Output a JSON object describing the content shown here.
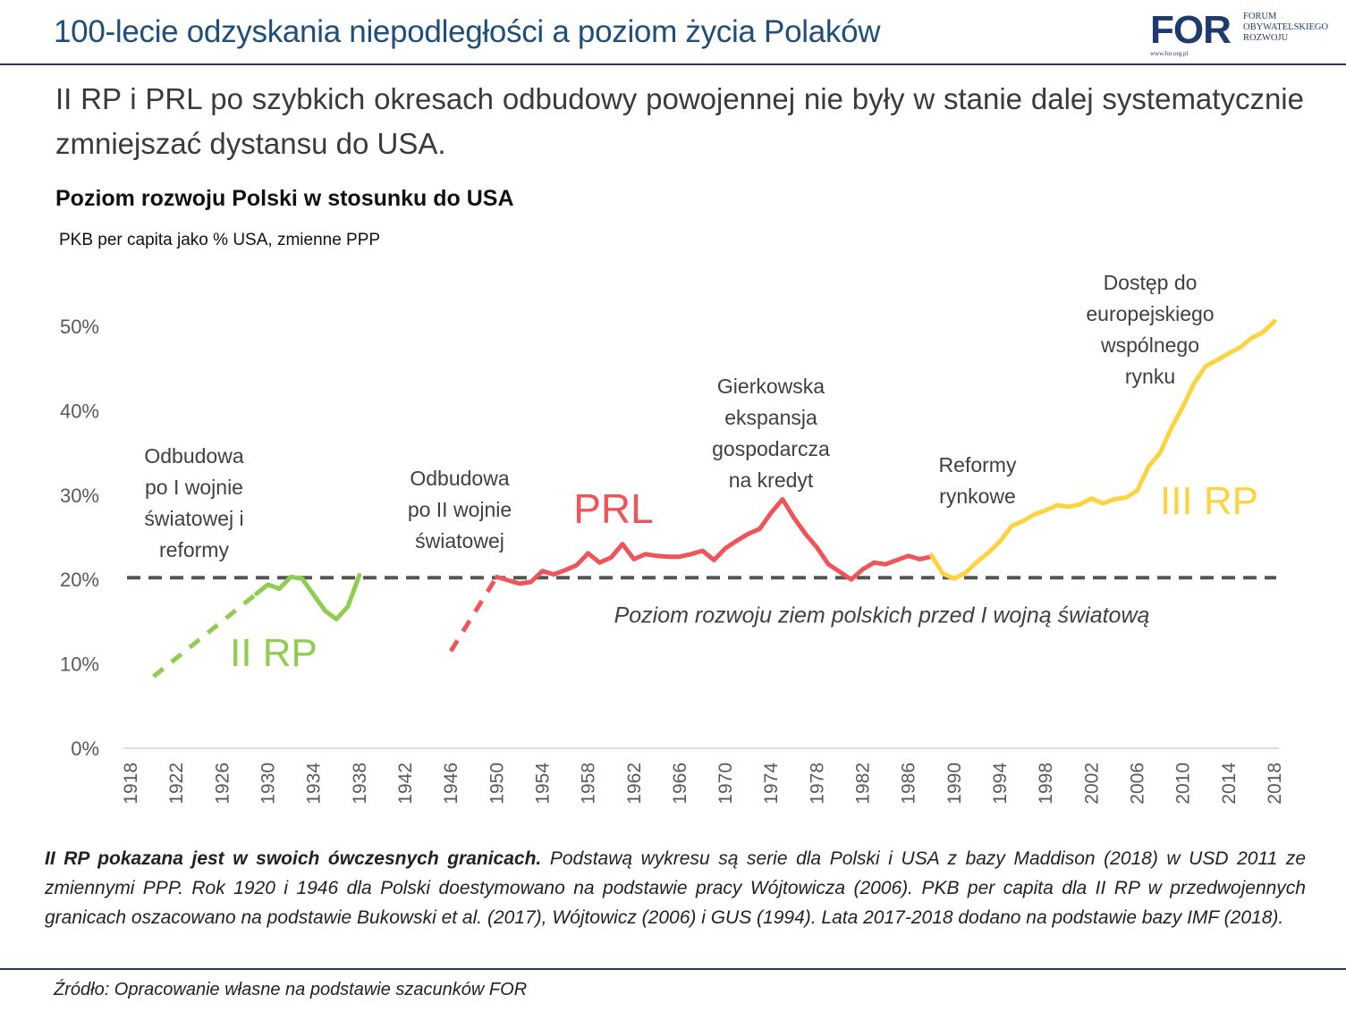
{
  "header": {
    "title": "100-lecie odzyskania niepodległości a poziom życia Polaków",
    "logo": {
      "mark": "FOR",
      "line1": "FORUM",
      "line2": "OBYWATELSKIEGO",
      "line3": "ROZWOJU",
      "url": "www.for.org.pl"
    }
  },
  "headline": "II RP i PRL po szybkich okresach odbudowy powojennej nie były w stanie dalej systematycznie zmniejszać dystansu do USA.",
  "chart_data": {
    "type": "line",
    "title": "Poziom rozwoju Polski w stosunku do USA",
    "subtitle": "PKB per capita jako % USA, zmienne PPP",
    "ylim": [
      0,
      50
    ],
    "yticks": [
      0,
      10,
      20,
      30,
      40,
      50
    ],
    "ytick_labels": [
      "0%",
      "10%",
      "20%",
      "30%",
      "40%",
      "50%"
    ],
    "xlim": [
      1918,
      2018
    ],
    "xticks": [
      1918,
      1922,
      1926,
      1930,
      1934,
      1938,
      1942,
      1946,
      1950,
      1954,
      1958,
      1962,
      1966,
      1970,
      1974,
      1978,
      1982,
      1986,
      1990,
      1994,
      1998,
      2002,
      2006,
      2010,
      2014,
      2018
    ],
    "grid": false,
    "reference_line": {
      "y": 20.2,
      "style": "dashed",
      "color": "#555555",
      "label": "Poziom rozwoju ziem polskich przed I wojną światową"
    },
    "series": [
      {
        "name": "II RP",
        "color": "#8fcc4f",
        "dashed": true,
        "x": [
          1920,
          1929
        ],
        "y": [
          8.5,
          18.3
        ]
      },
      {
        "name": "II RP",
        "color": "#8fcc4f",
        "dashed": false,
        "x": [
          1929,
          1930,
          1931,
          1932,
          1933,
          1934,
          1935,
          1936,
          1937,
          1938
        ],
        "y": [
          18.3,
          19.4,
          18.9,
          20.3,
          20.1,
          18.2,
          16.3,
          15.3,
          16.8,
          20.5
        ]
      },
      {
        "name": "PRL",
        "color": "#f0545b",
        "dashed": true,
        "x": [
          1946,
          1950
        ],
        "y": [
          11.5,
          20.3
        ]
      },
      {
        "name": "PRL",
        "color": "#f0545b",
        "dashed": false,
        "x": [
          1950,
          1951,
          1952,
          1953,
          1954,
          1955,
          1956,
          1957,
          1958,
          1959,
          1960,
          1961,
          1962,
          1963,
          1964,
          1965,
          1966,
          1967,
          1968,
          1969,
          1970,
          1971,
          1972,
          1973,
          1974,
          1975,
          1976,
          1977,
          1978,
          1979,
          1980,
          1981,
          1982,
          1983,
          1984,
          1985,
          1986,
          1987,
          1988
        ],
        "y": [
          20.3,
          19.9,
          19.5,
          19.7,
          21.0,
          20.6,
          21.1,
          21.7,
          23.1,
          22.0,
          22.6,
          24.2,
          22.4,
          23.0,
          22.8,
          22.7,
          22.7,
          23.0,
          23.4,
          22.3,
          23.7,
          24.6,
          25.4,
          26.0,
          27.9,
          29.5,
          27.3,
          25.4,
          23.8,
          21.8,
          20.9,
          20.0,
          21.2,
          22.0,
          21.8,
          22.3,
          22.8,
          22.4,
          22.7
        ]
      },
      {
        "name": "III RP",
        "color": "#fdd440",
        "dashed": false,
        "x": [
          1988,
          1989,
          1990,
          1991,
          1992,
          1993,
          1994,
          1995,
          1996,
          1997,
          1998,
          1999,
          2000,
          2001,
          2002,
          2003,
          2004,
          2005,
          2006,
          2007,
          2008,
          2009,
          2010,
          2011,
          2012,
          2013,
          2014,
          2015,
          2016,
          2017,
          2018
        ],
        "y": [
          22.9,
          20.7,
          20.1,
          20.8,
          22.1,
          23.2,
          24.5,
          26.3,
          26.9,
          27.7,
          28.2,
          28.8,
          28.6,
          28.9,
          29.6,
          29.0,
          29.5,
          29.7,
          30.5,
          33.4,
          35.0,
          38.0,
          40.5,
          43.3,
          45.3,
          46.0,
          46.8,
          47.5,
          48.6,
          49.3,
          50.6
        ]
      }
    ],
    "annotations": [
      {
        "id": "ann-odbudowa-1",
        "text": [
          "Odbudowa",
          "po I wojnie",
          "światowej i",
          "reformy"
        ]
      },
      {
        "id": "ann-odbudowa-2",
        "text": [
          "Odbudowa",
          "po II wojnie",
          "światowej"
        ]
      },
      {
        "id": "ann-gierek",
        "text": [
          "Gierkowska",
          "ekspansja",
          "gospodarcza",
          "na kredyt"
        ]
      },
      {
        "id": "ann-reformy",
        "text": [
          "Reformy",
          "rynkowe"
        ]
      },
      {
        "id": "ann-eu",
        "text": [
          "Dostęp do",
          "europejskiego",
          "wspólnego",
          "rynku"
        ]
      }
    ],
    "series_labels": [
      {
        "text": "II RP",
        "color": "#8fcc4f"
      },
      {
        "text": "PRL",
        "color": "#f0545b"
      },
      {
        "text": "III RP",
        "color": "#fdd440"
      }
    ]
  },
  "note": {
    "bold": "II RP pokazana jest w swoich ówczesnych granicach.",
    "text": " Podstawą wykresu są serie dla Polski i USA z bazy Maddison (2018) w USD 2011 ze zmiennymi PPP. Rok 1920 i 1946 dla Polski doestymowano na podstawie pracy Wójtowicza (2006). PKB per capita dla II RP w przedwojennych granicach oszacowano na podstawie Bukowski et al. (2017), Wójtowicz (2006) i GUS (1994). Lata 2017-2018 dodano na podstawie bazy IMF (2018)."
  },
  "source": "Źródło: Opracowanie własne na podstawie szacunków FOR"
}
